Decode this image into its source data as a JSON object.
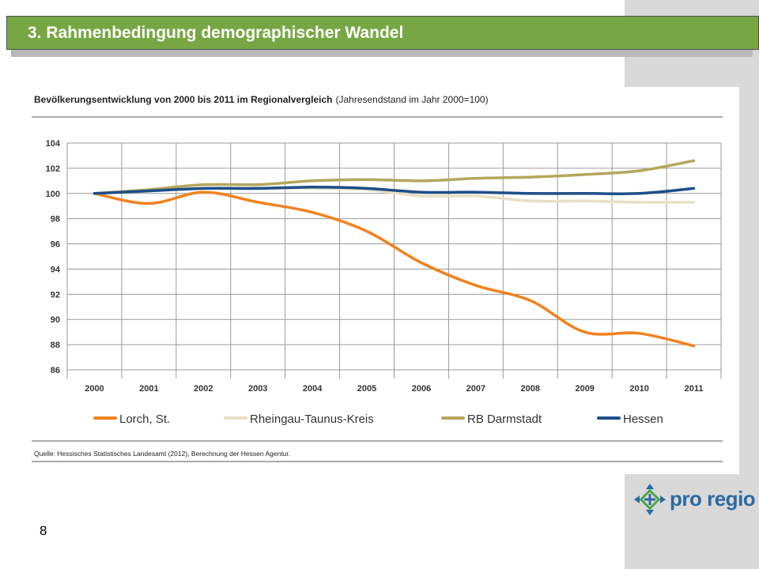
{
  "header": {
    "title": "3. Rahmenbedingung demographischer Wandel"
  },
  "page": {
    "number": "8"
  },
  "logo": {
    "text": "pro regio",
    "color": "#2c6aa0"
  },
  "chart_data": {
    "type": "line",
    "title": "Bevölkerungsentwicklung von 2000 bis 2011 im Regionalvergleich",
    "subtitle": "(Jahresendstand im Jahr 2000=100)",
    "source": "Quelle: Hessisches Statistisches Landesamt (2012), Berechnung der Hessen Agentur.",
    "categories": [
      "2000",
      "2001",
      "2002",
      "2003",
      "2004",
      "2005",
      "2006",
      "2007",
      "2008",
      "2009",
      "2010",
      "2011"
    ],
    "ylim": [
      86,
      104
    ],
    "yticks": [
      104,
      102,
      100,
      98,
      96,
      94,
      92,
      90,
      88,
      86
    ],
    "grid": true,
    "legend_position": "bottom",
    "series": [
      {
        "name": "Lorch, St.",
        "color": "#f0821e",
        "values": [
          100.0,
          99.2,
          100.1,
          99.3,
          98.5,
          97.0,
          94.5,
          92.7,
          91.5,
          89.0,
          88.9,
          87.9
        ]
      },
      {
        "name": "Rheingau-Taunus-Kreis",
        "color": "#e8e0c4",
        "values": [
          100.0,
          100.2,
          100.4,
          100.4,
          100.4,
          100.3,
          99.8,
          99.8,
          99.4,
          99.4,
          99.3,
          99.3
        ]
      },
      {
        "name": "RB Darmstadt",
        "color": "#b5a65c",
        "values": [
          100.0,
          100.3,
          100.7,
          100.7,
          101.0,
          101.1,
          101.0,
          101.2,
          101.3,
          101.5,
          101.8,
          102.6
        ]
      },
      {
        "name": "Hessen",
        "color": "#1d4e89",
        "values": [
          100.0,
          100.2,
          100.4,
          100.4,
          100.5,
          100.4,
          100.1,
          100.1,
          100.0,
          100.0,
          100.0,
          100.4
        ]
      }
    ]
  }
}
